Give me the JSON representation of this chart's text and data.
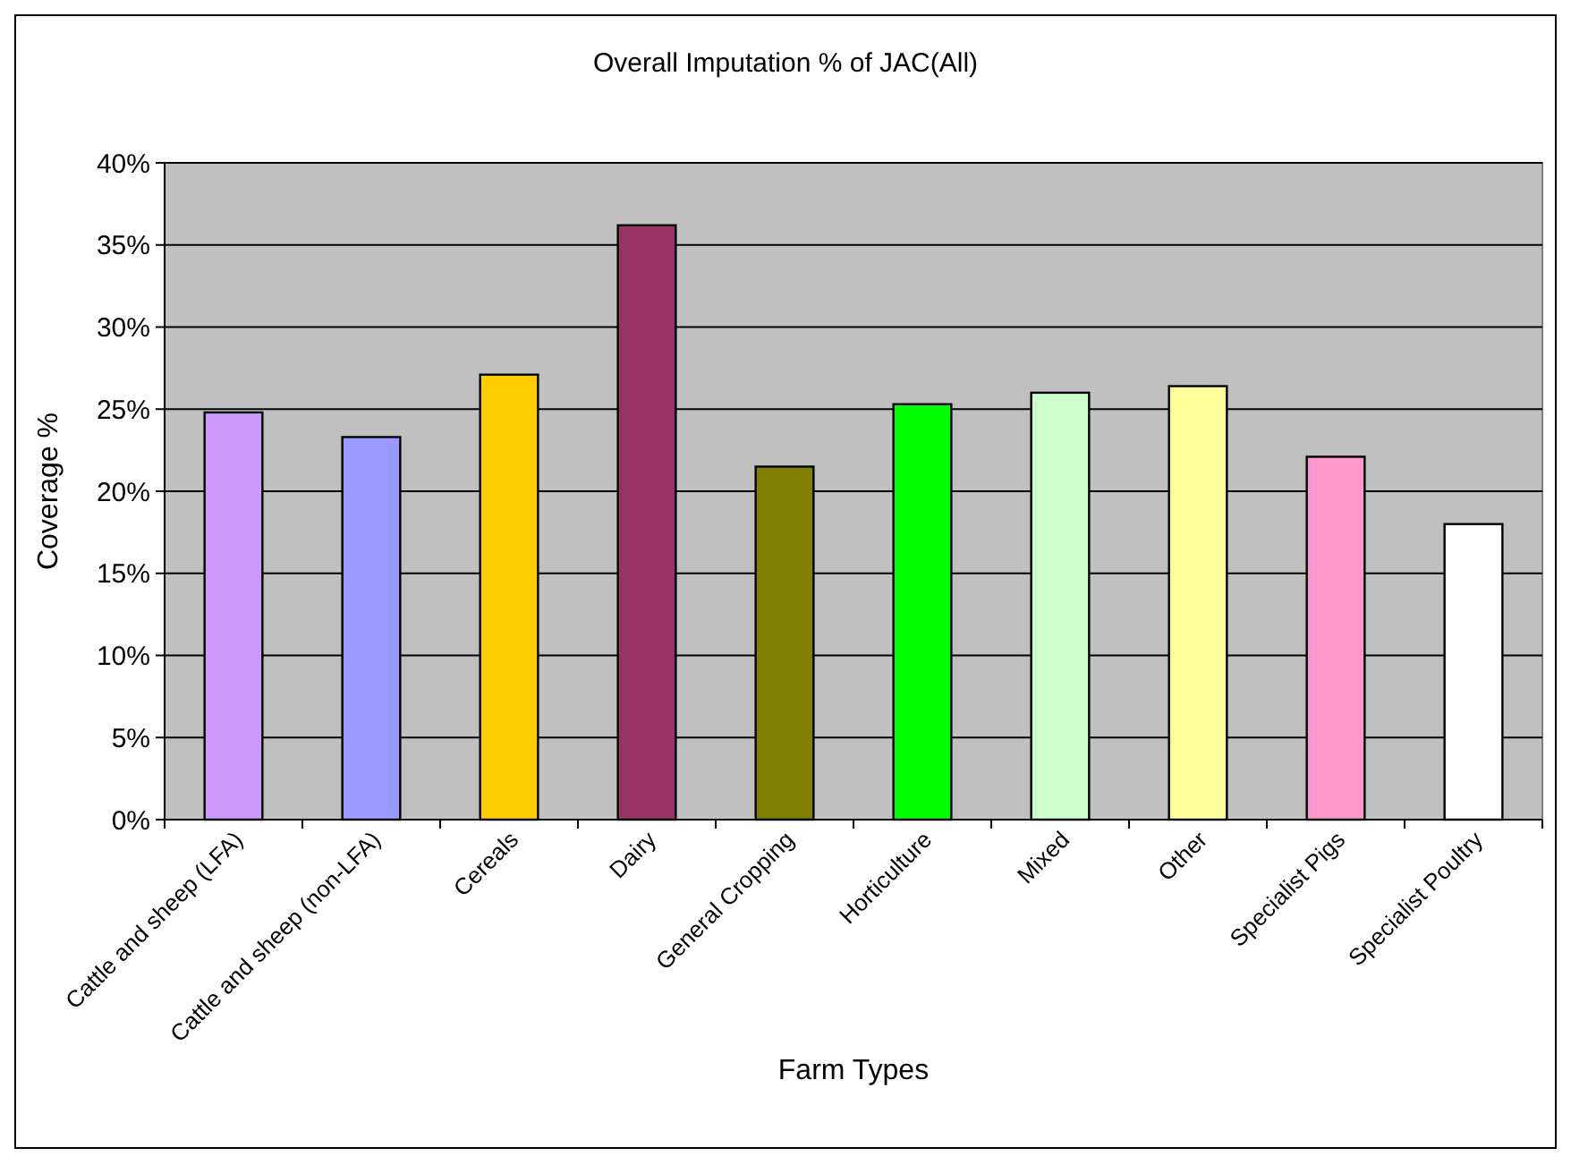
{
  "chart_data": {
    "type": "bar",
    "title": "Overall Imputation % of JAC(All)",
    "xlabel": "Farm Types",
    "ylabel": "Coverage %",
    "categories": [
      "Cattle and sheep (LFA)",
      "Cattle and sheep (non-LFA)",
      "Cereals",
      "Dairy",
      "General Cropping",
      "Horticulture",
      "Mixed",
      "Other",
      "Specialist Pigs",
      "Specialist Poultry"
    ],
    "values": [
      24.8,
      23.3,
      27.1,
      36.2,
      21.5,
      25.3,
      26.0,
      26.4,
      22.1,
      18.0
    ],
    "colors": [
      "#cc99ff",
      "#9999ff",
      "#ffcc00",
      "#993366",
      "#808000",
      "#00ff00",
      "#ccffcc",
      "#ffff99",
      "#ff99cc",
      "#ffffff"
    ],
    "ylim": [
      0,
      40
    ],
    "yticks": [
      {
        "value": 0,
        "label": "0%"
      },
      {
        "value": 5,
        "label": "5%"
      },
      {
        "value": 10,
        "label": "10%"
      },
      {
        "value": 15,
        "label": "15%"
      },
      {
        "value": 20,
        "label": "20%"
      },
      {
        "value": 25,
        "label": "25%"
      },
      {
        "value": 30,
        "label": "30%"
      },
      {
        "value": 35,
        "label": "35%"
      },
      {
        "value": 40,
        "label": "40%"
      }
    ],
    "grid": "y"
  }
}
